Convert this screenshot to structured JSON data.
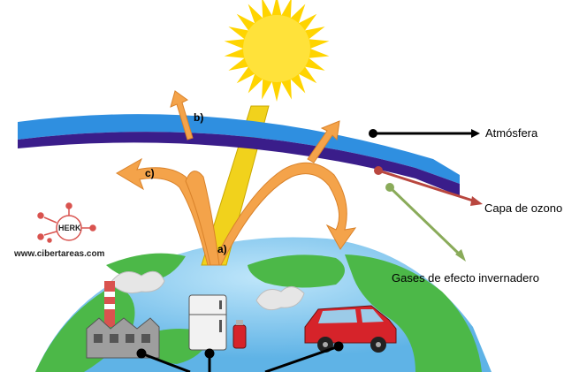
{
  "diagram": {
    "labels": {
      "a": "a)",
      "b": "b)",
      "c": "c)",
      "atmosphere": "Atmósfera",
      "ozone_layer": "Capa de ozono",
      "greenhouse_gases": "Gases de efecto invernadero"
    },
    "watermark": {
      "logo_text": "HERK",
      "url": "www.cibertareas.com"
    },
    "colors": {
      "sun": "#ffd400",
      "sun_core": "#ffe23a",
      "atmosphere_band": "#2f8fe0",
      "ozone_band": "#3a1d8a",
      "arrows": "#f4a34a",
      "sunbeam": "#f1d21c",
      "earth_land": "#4db84a",
      "earth_water": "#63b8e8",
      "car": "#d6232a",
      "logo": "#d9534f"
    },
    "icons": [
      "sun-icon",
      "factory-icon",
      "refrigerator-icon",
      "spray-can-icon",
      "car-icon",
      "smoke-icon",
      "logo-icon"
    ]
  }
}
